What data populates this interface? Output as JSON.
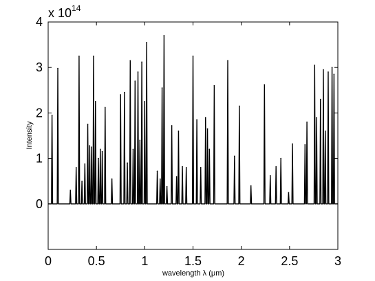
{
  "chart_data": {
    "type": "line",
    "title": "",
    "xlabel": "wavelength λ (μm)",
    "ylabel": "Intensity",
    "xlim": [
      0,
      3
    ],
    "ylim": [
      -1,
      4
    ],
    "y_multiplier": {
      "base": "x 10",
      "exponent": "14"
    },
    "x_ticks": [
      0,
      0.5,
      1,
      1.5,
      2,
      2.5,
      3
    ],
    "x_tick_labels": [
      "0",
      "0.5",
      "1",
      "1.5",
      "2",
      "2.5",
      "3"
    ],
    "y_ticks": [
      0,
      1,
      2,
      3,
      4
    ],
    "y_tick_labels": [
      "0",
      "1",
      "2",
      "3",
      "4"
    ],
    "grid": false,
    "line_color": "#000000",
    "baseline": 0,
    "series": [
      {
        "peaks": [
          [
            0.04,
            1.95
          ],
          [
            0.1,
            2.98
          ],
          [
            0.23,
            0.3
          ],
          [
            0.29,
            0.8
          ],
          [
            0.32,
            3.25
          ],
          [
            0.35,
            0.5
          ],
          [
            0.38,
            0.88
          ],
          [
            0.41,
            1.75
          ],
          [
            0.43,
            1.28
          ],
          [
            0.45,
            1.25
          ],
          [
            0.47,
            3.25
          ],
          [
            0.49,
            2.25
          ],
          [
            0.52,
            1.0
          ],
          [
            0.54,
            1.2
          ],
          [
            0.56,
            1.15
          ],
          [
            0.59,
            2.12
          ],
          [
            0.66,
            0.55
          ],
          [
            0.75,
            2.4
          ],
          [
            0.79,
            2.45
          ],
          [
            0.82,
            0.9
          ],
          [
            0.85,
            3.15
          ],
          [
            0.88,
            1.2
          ],
          [
            0.9,
            2.7
          ],
          [
            0.93,
            2.9
          ],
          [
            0.95,
            1.4
          ],
          [
            0.97,
            3.12
          ],
          [
            1.0,
            2.25
          ],
          [
            1.02,
            3.55
          ],
          [
            1.13,
            0.72
          ],
          [
            1.16,
            0.55
          ],
          [
            1.18,
            2.55
          ],
          [
            1.2,
            3.7
          ],
          [
            1.23,
            0.38
          ],
          [
            1.28,
            1.72
          ],
          [
            1.33,
            0.6
          ],
          [
            1.35,
            1.6
          ],
          [
            1.39,
            0.82
          ],
          [
            1.43,
            0.8
          ],
          [
            1.5,
            3.25
          ],
          [
            1.54,
            1.85
          ],
          [
            1.58,
            0.8
          ],
          [
            1.63,
            1.9
          ],
          [
            1.65,
            1.65
          ],
          [
            1.67,
            1.2
          ],
          [
            1.72,
            2.6
          ],
          [
            1.86,
            3.15
          ],
          [
            1.93,
            1.05
          ],
          [
            1.98,
            2.15
          ],
          [
            2.1,
            0.4
          ],
          [
            2.24,
            2.62
          ],
          [
            2.3,
            0.62
          ],
          [
            2.36,
            0.82
          ],
          [
            2.41,
            1.0
          ],
          [
            2.49,
            0.25
          ],
          [
            2.53,
            1.32
          ],
          [
            2.66,
            1.3
          ],
          [
            2.68,
            1.8
          ],
          [
            2.76,
            3.05
          ],
          [
            2.78,
            1.9
          ],
          [
            2.82,
            2.3
          ],
          [
            2.85,
            2.95
          ],
          [
            2.87,
            1.6
          ],
          [
            2.9,
            2.9
          ],
          [
            2.94,
            3.0
          ],
          [
            2.96,
            2.85
          ]
        ]
      }
    ]
  }
}
